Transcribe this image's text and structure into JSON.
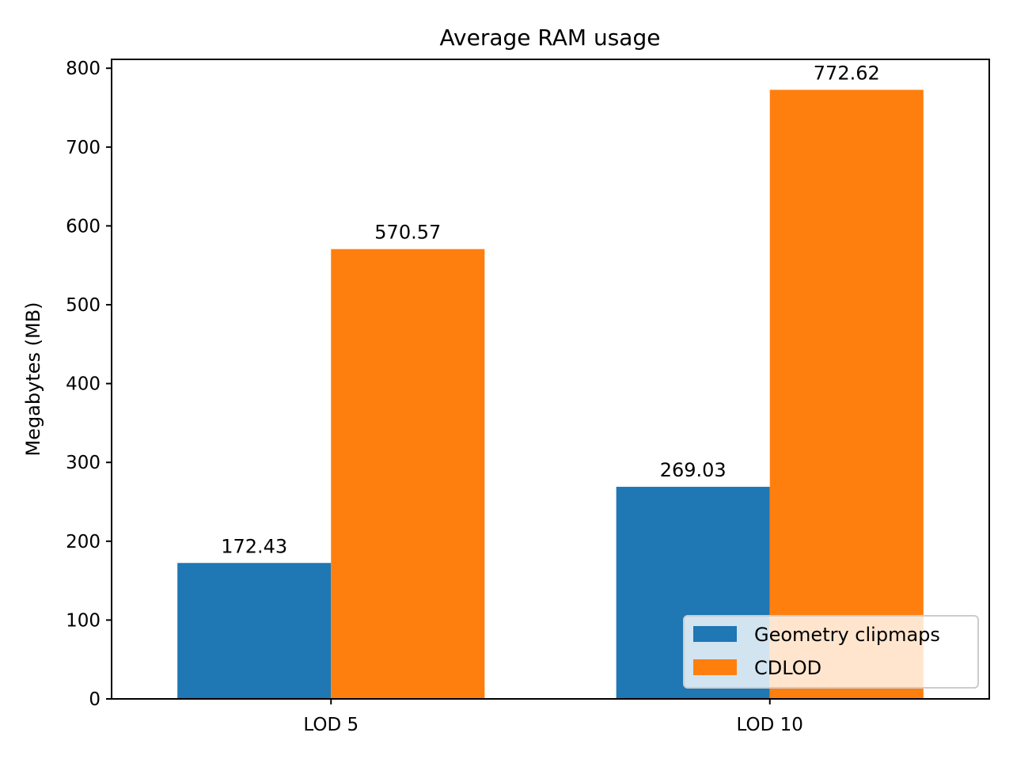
{
  "chart_data": {
    "type": "bar",
    "title": "Average RAM usage",
    "xlabel": "",
    "ylabel": "Megabytes (MB)",
    "categories": [
      "LOD 5",
      "LOD 10"
    ],
    "series": [
      {
        "name": "Geometry clipmaps",
        "values": [
          172.43,
          269.03
        ],
        "labels": [
          "172.43",
          "269.03"
        ],
        "color": "#1f77b4"
      },
      {
        "name": "CDLOD",
        "values": [
          570.57,
          772.62
        ],
        "labels": [
          "570.57",
          "772.62"
        ],
        "color": "#ff7f0e"
      }
    ],
    "ylim": [
      0,
      811.25
    ],
    "yticks": [
      0,
      100,
      200,
      300,
      400,
      500,
      600,
      700,
      800
    ],
    "ytick_labels": [
      "0",
      "100",
      "200",
      "300",
      "400",
      "500",
      "600",
      "700",
      "800"
    ],
    "legend_position": "lower right",
    "grid": false
  }
}
